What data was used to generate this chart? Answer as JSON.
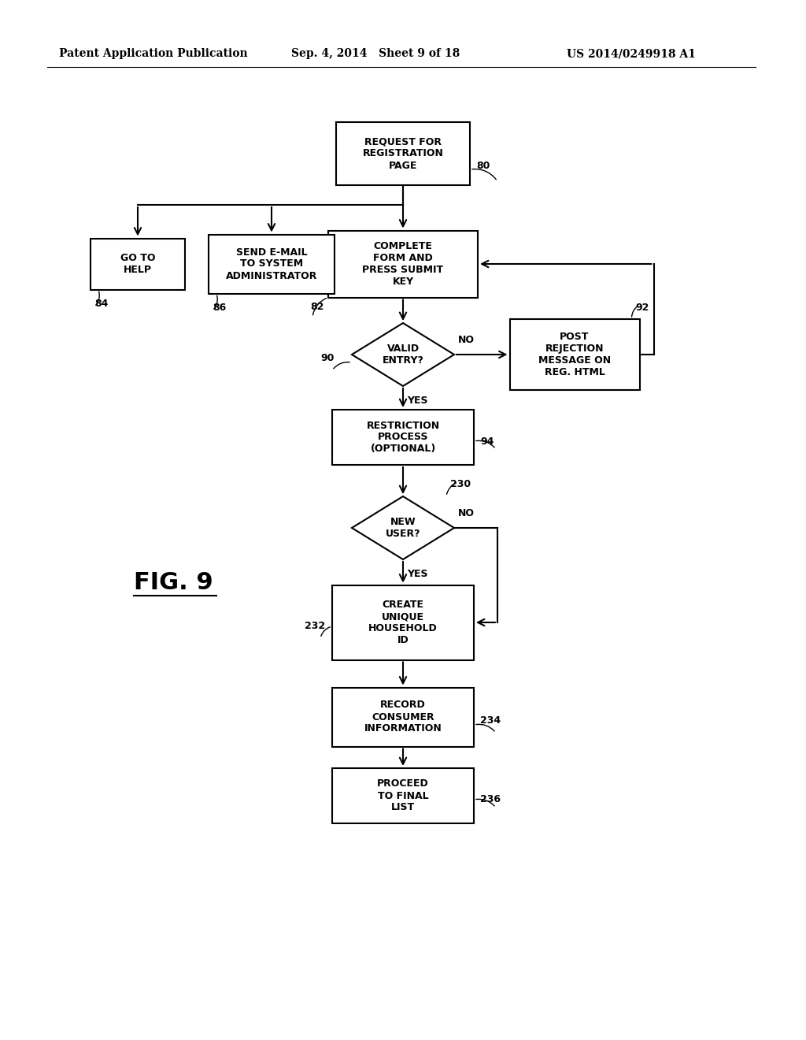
{
  "bg_color": "#ffffff",
  "header_left": "Patent Application Publication",
  "header_mid": "Sep. 4, 2014   Sheet 9 of 18",
  "header_right": "US 2014/0249918 A1",
  "fig_label": "FIG. 9"
}
